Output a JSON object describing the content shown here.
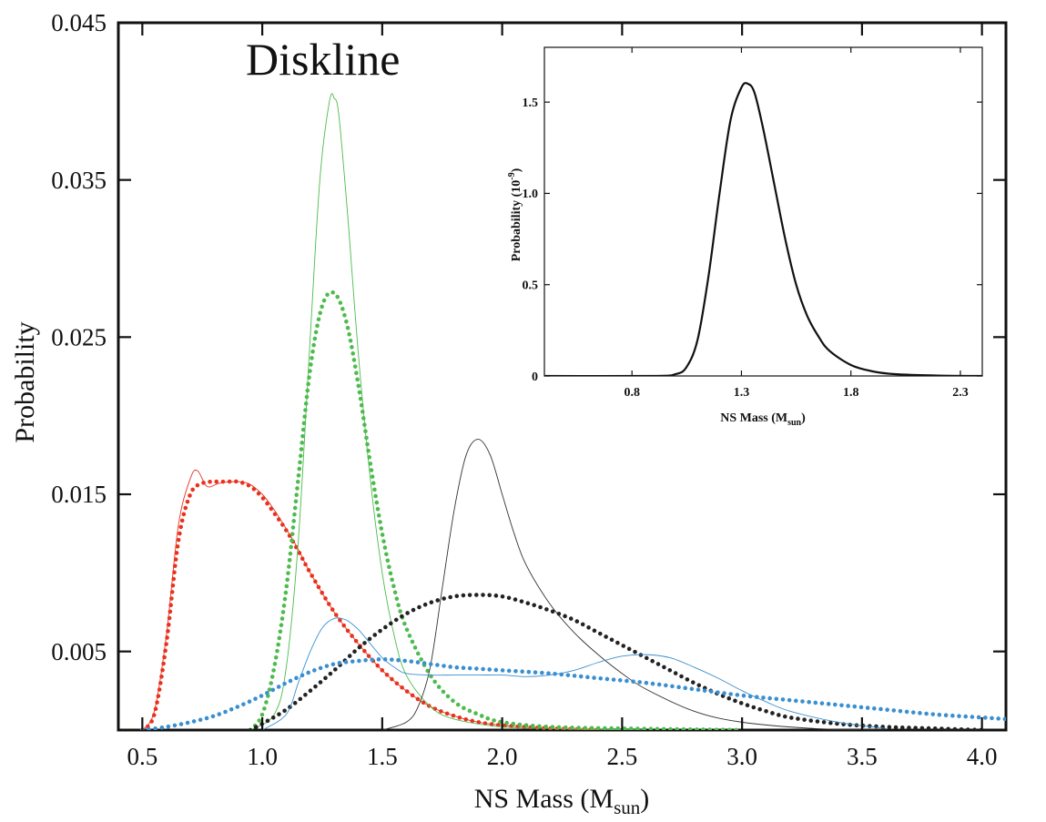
{
  "chart_data": [
    {
      "type": "line",
      "title": "Diskline",
      "xlabel": "NS Mass",
      "xlabel_sub": "sun",
      "xlabel_base": "M",
      "ylabel": "Probability",
      "xlim": [
        0.4,
        4.1
      ],
      "ylim": [
        0.0,
        0.045
      ],
      "x_ticks": [
        0.5,
        1.0,
        1.5,
        2.0,
        2.5,
        3.0,
        3.5,
        4.0
      ],
      "x_tick_labels": [
        "0.5",
        "1.0",
        "1.5",
        "2.0",
        "2.5",
        "3.0",
        "3.5",
        "4.0"
      ],
      "y_ticks": [
        0.005,
        0.015,
        0.025,
        0.035,
        0.045
      ],
      "y_tick_labels": [
        "0.005",
        "0.015",
        "0.025",
        "0.035",
        "0.045"
      ],
      "grid": false,
      "series": [
        {
          "style": "solid-thin",
          "color": "#e8321e",
          "x": [
            0.5,
            0.55,
            0.6,
            0.65,
            0.7,
            0.73,
            0.77,
            0.82,
            0.88,
            0.94,
            1.0,
            1.05,
            1.1,
            1.15,
            1.2,
            1.3,
            1.4,
            1.5,
            1.6,
            1.7,
            1.8,
            1.9,
            2.0,
            2.1,
            2.2,
            2.4
          ],
          "y": [
            0.0,
            0.0012,
            0.006,
            0.013,
            0.016,
            0.0165,
            0.0155,
            0.0157,
            0.0158,
            0.0157,
            0.015,
            0.014,
            0.0128,
            0.0115,
            0.01,
            0.0075,
            0.0055,
            0.0038,
            0.0025,
            0.0015,
            0.0009,
            0.0005,
            0.0003,
            0.0002,
            0.0001,
            0.0
          ]
        },
        {
          "style": "dotted",
          "color": "#e8321e",
          "x": [
            0.5,
            0.55,
            0.6,
            0.65,
            0.7,
            0.75,
            0.8,
            0.85,
            0.9,
            0.95,
            1.0,
            1.05,
            1.1,
            1.15,
            1.2,
            1.3,
            1.4,
            1.5,
            1.6,
            1.7,
            1.8,
            1.9,
            2.0,
            2.1,
            2.2,
            2.4
          ],
          "y": [
            0.0,
            0.001,
            0.0055,
            0.012,
            0.015,
            0.0157,
            0.0158,
            0.0158,
            0.0158,
            0.0155,
            0.0148,
            0.0138,
            0.0127,
            0.0114,
            0.01,
            0.0075,
            0.0055,
            0.0038,
            0.0025,
            0.0015,
            0.0009,
            0.0005,
            0.0003,
            0.0002,
            0.0001,
            0.0
          ]
        },
        {
          "style": "solid-thin",
          "color": "#4dbb4d",
          "x": [
            0.95,
            1.05,
            1.1,
            1.15,
            1.2,
            1.24,
            1.28,
            1.3,
            1.32,
            1.36,
            1.4,
            1.45,
            1.5,
            1.55,
            1.6,
            1.7,
            1.8,
            2.0,
            2.2,
            2.6
          ],
          "y": [
            0.0,
            0.001,
            0.004,
            0.012,
            0.025,
            0.035,
            0.04,
            0.0402,
            0.039,
            0.032,
            0.024,
            0.016,
            0.01,
            0.006,
            0.0035,
            0.0015,
            0.0007,
            0.0002,
            0.0001,
            0.0
          ]
        },
        {
          "style": "dotted",
          "color": "#4dbb4d",
          "x": [
            0.95,
            1.0,
            1.05,
            1.1,
            1.15,
            1.2,
            1.25,
            1.3,
            1.35,
            1.4,
            1.45,
            1.5,
            1.55,
            1.6,
            1.7,
            1.8,
            1.9,
            2.0,
            2.2,
            2.5,
            3.0
          ],
          "y": [
            0.0,
            0.001,
            0.004,
            0.009,
            0.016,
            0.023,
            0.027,
            0.0278,
            0.026,
            0.022,
            0.017,
            0.0125,
            0.009,
            0.0065,
            0.0035,
            0.0018,
            0.001,
            0.0005,
            0.0002,
            0.0001,
            0.0
          ]
        },
        {
          "style": "solid-thin",
          "color": "#333333",
          "x": [
            1.5,
            1.6,
            1.65,
            1.7,
            1.75,
            1.8,
            1.85,
            1.9,
            1.95,
            2.0,
            2.05,
            2.1,
            2.2,
            2.3,
            2.4,
            2.5,
            2.6,
            2.8,
            3.0,
            3.3,
            3.6
          ],
          "y": [
            0.0,
            0.0005,
            0.0015,
            0.004,
            0.009,
            0.014,
            0.0175,
            0.0185,
            0.0175,
            0.015,
            0.0125,
            0.0105,
            0.008,
            0.0062,
            0.0048,
            0.0036,
            0.0026,
            0.0012,
            0.0005,
            0.0001,
            0.0
          ]
        },
        {
          "style": "dotted",
          "color": "#222222",
          "x": [
            0.95,
            1.0,
            1.1,
            1.2,
            1.3,
            1.4,
            1.5,
            1.6,
            1.7,
            1.8,
            1.9,
            2.0,
            2.1,
            2.2,
            2.3,
            2.4,
            2.5,
            2.6,
            2.7,
            2.8,
            2.9,
            3.0,
            3.1,
            3.2,
            3.4,
            3.6,
            3.8,
            4.0
          ],
          "y": [
            0.0,
            0.0004,
            0.0013,
            0.0025,
            0.0038,
            0.0052,
            0.0064,
            0.0074,
            0.0081,
            0.0085,
            0.0086,
            0.0085,
            0.0081,
            0.0076,
            0.007,
            0.0062,
            0.0054,
            0.0046,
            0.0038,
            0.003,
            0.0023,
            0.0017,
            0.0012,
            0.0008,
            0.0004,
            0.0002,
            0.0001,
            0.0
          ]
        },
        {
          "style": "solid-thin",
          "color": "#3a8fd0",
          "x": [
            1.0,
            1.1,
            1.15,
            1.2,
            1.25,
            1.3,
            1.35,
            1.4,
            1.45,
            1.5,
            1.55,
            1.6,
            1.7,
            1.8,
            1.9,
            2.0,
            2.1,
            2.2,
            2.3,
            2.4,
            2.5,
            2.6,
            2.7,
            2.8,
            2.9,
            3.0,
            3.1,
            3.2,
            3.4,
            3.6
          ],
          "y": [
            0.0,
            0.001,
            0.003,
            0.005,
            0.0065,
            0.0071,
            0.007,
            0.0064,
            0.0055,
            0.0046,
            0.004,
            0.0036,
            0.0035,
            0.0035,
            0.0035,
            0.0035,
            0.0034,
            0.0035,
            0.0038,
            0.0043,
            0.0047,
            0.0048,
            0.0046,
            0.004,
            0.0033,
            0.0025,
            0.0018,
            0.0012,
            0.0005,
            0.0001
          ]
        },
        {
          "style": "dotted",
          "color": "#3a8fd0",
          "x": [
            0.5,
            0.6,
            0.7,
            0.8,
            0.9,
            1.0,
            1.1,
            1.2,
            1.3,
            1.4,
            1.5,
            1.6,
            1.7,
            1.8,
            1.9,
            2.0,
            2.2,
            2.4,
            2.6,
            2.8,
            3.0,
            3.2,
            3.4,
            3.6,
            3.8,
            4.0,
            4.1
          ],
          "y": [
            0.0,
            0.0002,
            0.0005,
            0.0009,
            0.0015,
            0.0022,
            0.003,
            0.0037,
            0.0042,
            0.0044,
            0.0045,
            0.0044,
            0.0042,
            0.004,
            0.0039,
            0.0038,
            0.0036,
            0.0033,
            0.003,
            0.0026,
            0.0022,
            0.0019,
            0.0016,
            0.0013,
            0.001,
            0.0008,
            0.0007
          ]
        }
      ]
    },
    {
      "type": "line",
      "title": "",
      "xlabel": "NS Mass (",
      "xlabel_base": "M",
      "xlabel_sub": "sun",
      "ylabel": "Probability (10",
      "ylabel_sup": "-9",
      "xlim": [
        0.4,
        2.4
      ],
      "ylim": [
        0.0,
        1.8
      ],
      "x_ticks": [
        0.8,
        1.3,
        1.8,
        2.3
      ],
      "x_tick_labels": [
        "0.8",
        "1.3",
        "1.8",
        "2.3"
      ],
      "y_ticks": [
        0.0,
        0.5,
        1.0,
        1.5
      ],
      "y_tick_labels": [
        "0",
        "0.5",
        "1.0",
        "1.5"
      ],
      "grid": false,
      "series": [
        {
          "style": "solid",
          "color": "#111111",
          "x": [
            0.4,
            0.9,
            1.0,
            1.05,
            1.1,
            1.15,
            1.2,
            1.25,
            1.3,
            1.33,
            1.36,
            1.4,
            1.45,
            1.5,
            1.55,
            1.6,
            1.65,
            1.7,
            1.8,
            1.9,
            2.0,
            2.2,
            2.4
          ],
          "y": [
            0.0,
            0.0,
            0.01,
            0.05,
            0.2,
            0.55,
            1.0,
            1.4,
            1.58,
            1.6,
            1.55,
            1.35,
            1.05,
            0.75,
            0.5,
            0.33,
            0.22,
            0.14,
            0.06,
            0.025,
            0.01,
            0.002,
            0.0
          ]
        }
      ]
    }
  ]
}
